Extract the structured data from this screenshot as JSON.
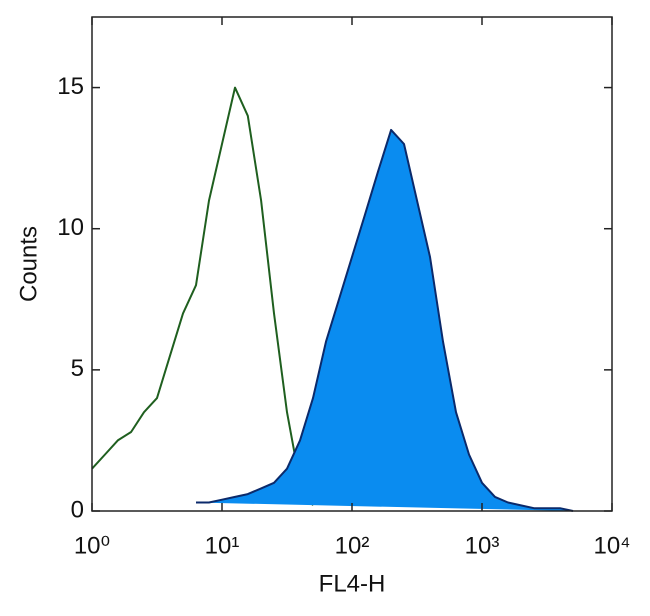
{
  "chart_data": {
    "type": "histogram-line",
    "xlabel": "FL4-H",
    "ylabel": "Counts",
    "xscale": "log",
    "xlim": [
      1,
      10000
    ],
    "ylim": [
      0,
      17.5
    ],
    "xticks": [
      {
        "value": 1,
        "label": "10⁰"
      },
      {
        "value": 10,
        "label": "10¹"
      },
      {
        "value": 100,
        "label": "10²"
      },
      {
        "value": 1000,
        "label": "10³"
      },
      {
        "value": 10000,
        "label": "10⁴"
      }
    ],
    "yticks": [
      0,
      5,
      10,
      15
    ],
    "x": [
      1,
      1.26,
      1.58,
      2,
      2.51,
      3.16,
      3.98,
      5.01,
      6.31,
      7.94,
      10,
      12.6,
      15.8,
      20,
      25.1,
      31.6,
      39.8,
      50.1,
      63.1,
      79.4,
      100,
      126,
      158,
      200,
      251,
      316,
      398,
      501,
      631,
      794,
      1000,
      1259,
      1585,
      1995,
      2512,
      3162,
      3981,
      5012,
      6310,
      7943,
      10000
    ],
    "series": [
      {
        "color": "#1f5f1f",
        "fill": null,
        "values": [
          1.5,
          2,
          2.5,
          2.8,
          3.5,
          4,
          5.5,
          7,
          8,
          11,
          13,
          15,
          14,
          11,
          7,
          3.5,
          1,
          0.2,
          null,
          null,
          null,
          null,
          null,
          null,
          null,
          null,
          null,
          null,
          null,
          null,
          null,
          null,
          null,
          null,
          null,
          null,
          null,
          null,
          null,
          null,
          null
        ]
      },
      {
        "color": "#0b2a6b",
        "fill": "#0a8cf0",
        "values": [
          null,
          null,
          null,
          null,
          null,
          null,
          null,
          null,
          0.3,
          0.3,
          0.4,
          0.5,
          0.6,
          0.8,
          1,
          1.5,
          2.5,
          4,
          6,
          7.5,
          9,
          10.5,
          12,
          13.5,
          13,
          11,
          9,
          6,
          3.5,
          2,
          1,
          0.5,
          0.3,
          0.2,
          0.1,
          0.1,
          0.1,
          0,
          null,
          null,
          null
        ]
      }
    ]
  }
}
